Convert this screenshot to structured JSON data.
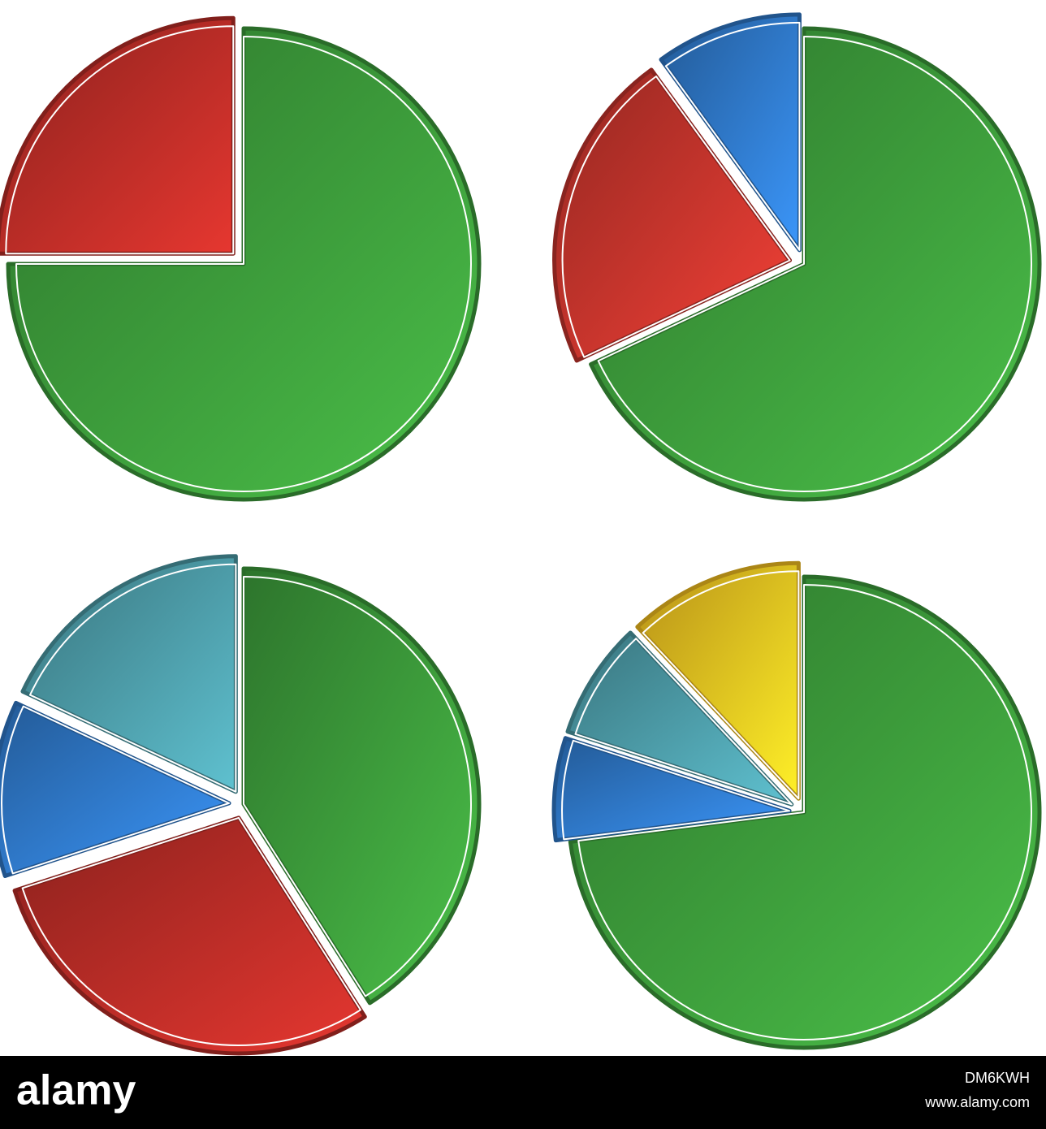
{
  "chart_data": [
    {
      "type": "pie",
      "values": [
        75,
        25
      ],
      "colors": [
        "#3c9a3a",
        "#b82c26"
      ]
    },
    {
      "type": "pie",
      "values": [
        68,
        22,
        10
      ],
      "colors": [
        "#3c9a3a",
        "#c4342c",
        "#2f78c8"
      ]
    },
    {
      "type": "pie",
      "values": [
        41,
        29,
        12,
        18
      ],
      "colors": [
        "#3c9a3a",
        "#b82c26",
        "#2f78c8",
        "#4c9aa6"
      ]
    },
    {
      "type": "pie",
      "values": [
        73,
        7,
        8,
        12
      ],
      "colors": [
        "#3c9a3a",
        "#2f78c8",
        "#4c9aa6",
        "#f4c020"
      ]
    }
  ],
  "footer": {
    "logo": "alamy",
    "image_id": "DM6KWH",
    "url": "www.alamy.com"
  }
}
